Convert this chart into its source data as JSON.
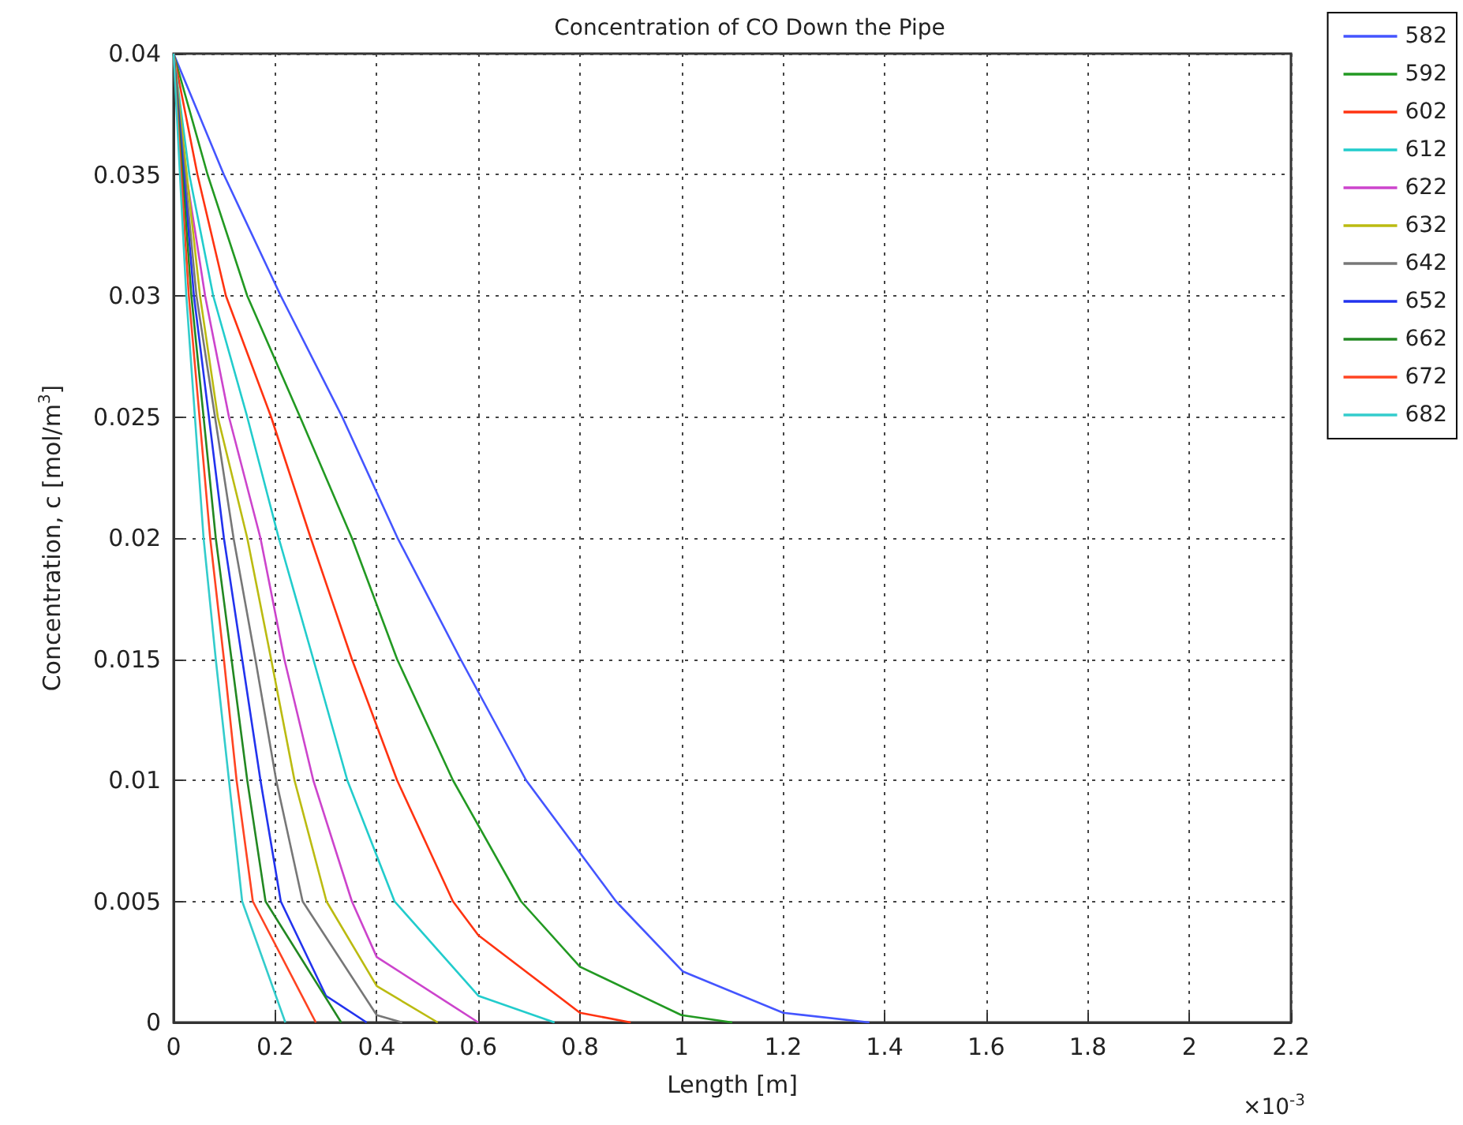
{
  "chart_data": {
    "type": "line",
    "title": "Concentration of CO Down the Pipe",
    "xlabel": "Length [m]",
    "ylabel": "Concentration, c [mol/m$^{3}$]",
    "annotations": [
      "×10$^{-3}$"
    ],
    "xlim": [
      0,
      2.2
    ],
    "xticks": [
      0,
      0.2,
      0.4,
      0.6,
      0.8,
      1,
      1.2,
      1.4,
      1.6,
      1.8,
      2,
      2.2
    ],
    "ylim": [
      0,
      0.04
    ],
    "yticks": [
      0,
      0.005,
      0.01,
      0.015,
      0.02,
      0.025,
      0.03,
      0.035,
      0.04
    ],
    "grid": true,
    "legend": "top right",
    "line_style": "solid",
    "marker": "none",
    "series": [
      {
        "name": "582",
        "color": "#4455ff",
        "x": [
          0,
          0.099,
          0.211,
          0.332,
          0.441,
          0.565,
          0.694,
          0.871,
          1.003,
          1.2,
          1.37
        ],
        "values": [
          0.04,
          0.035,
          0.03,
          0.025,
          0.02,
          0.015,
          0.01,
          0.005,
          0.0021,
          0.0004,
          0
        ]
      },
      {
        "name": "592",
        "color": "#229922",
        "x": [
          0,
          0.067,
          0.145,
          0.249,
          0.351,
          0.44,
          0.55,
          0.684,
          0.8,
          1.0,
          1.1
        ],
        "values": [
          0.04,
          0.035,
          0.03,
          0.025,
          0.02,
          0.015,
          0.01,
          0.005,
          0.0023,
          0.0003,
          0
        ]
      },
      {
        "name": "602",
        "color": "#ff3311",
        "x": [
          0,
          0.047,
          0.103,
          0.192,
          0.27,
          0.351,
          0.44,
          0.55,
          0.6,
          0.8,
          0.9
        ],
        "values": [
          0.04,
          0.035,
          0.03,
          0.025,
          0.02,
          0.015,
          0.01,
          0.005,
          0.0036,
          0.0004,
          0
        ]
      },
      {
        "name": "612",
        "color": "#22cccc",
        "x": [
          0,
          0.031,
          0.078,
          0.145,
          0.207,
          0.275,
          0.342,
          0.435,
          0.6,
          0.75
        ],
        "values": [
          0.04,
          0.035,
          0.03,
          0.025,
          0.02,
          0.015,
          0.01,
          0.005,
          0.0011,
          0
        ]
      },
      {
        "name": "622",
        "color": "#cc44cc",
        "x": [
          0,
          0.025,
          0.062,
          0.109,
          0.171,
          0.218,
          0.275,
          0.351,
          0.4,
          0.6
        ],
        "values": [
          0.04,
          0.035,
          0.03,
          0.025,
          0.02,
          0.015,
          0.01,
          0.005,
          0.0027,
          0
        ]
      },
      {
        "name": "632",
        "color": "#bbbb11",
        "x": [
          0,
          0.052,
          0.087,
          0.145,
          0.192,
          0.238,
          0.301,
          0.4,
          0.52
        ],
        "values": [
          0.04,
          0.03,
          0.025,
          0.02,
          0.015,
          0.01,
          0.005,
          0.0015,
          0
        ]
      },
      {
        "name": "642",
        "color": "#777777",
        "x": [
          0,
          0.045,
          0.118,
          0.161,
          0.202,
          0.254,
          0.4,
          0.45
        ],
        "values": [
          0.04,
          0.03,
          0.02,
          0.015,
          0.01,
          0.005,
          0.0003,
          0
        ]
      },
      {
        "name": "652",
        "color": "#2233ee",
        "x": [
          0,
          0.04,
          0.099,
          0.135,
          0.171,
          0.211,
          0.3,
          0.38
        ],
        "values": [
          0.04,
          0.03,
          0.02,
          0.015,
          0.01,
          0.005,
          0.0011,
          0
        ]
      },
      {
        "name": "662",
        "color": "#228822",
        "x": [
          0,
          0.035,
          0.083,
          0.114,
          0.145,
          0.181,
          0.33
        ],
        "values": [
          0.04,
          0.03,
          0.02,
          0.015,
          0.01,
          0.005,
          0
        ]
      },
      {
        "name": "672",
        "color": "#ff4422",
        "x": [
          0,
          0.03,
          0.072,
          0.099,
          0.124,
          0.156,
          0.28
        ],
        "values": [
          0.04,
          0.03,
          0.02,
          0.015,
          0.01,
          0.005,
          0
        ]
      },
      {
        "name": "682",
        "color": "#33cccc",
        "x": [
          0,
          0.025,
          0.059,
          0.083,
          0.109,
          0.135,
          0.22
        ],
        "values": [
          0.04,
          0.03,
          0.02,
          0.015,
          0.01,
          0.005,
          0
        ]
      }
    ]
  }
}
